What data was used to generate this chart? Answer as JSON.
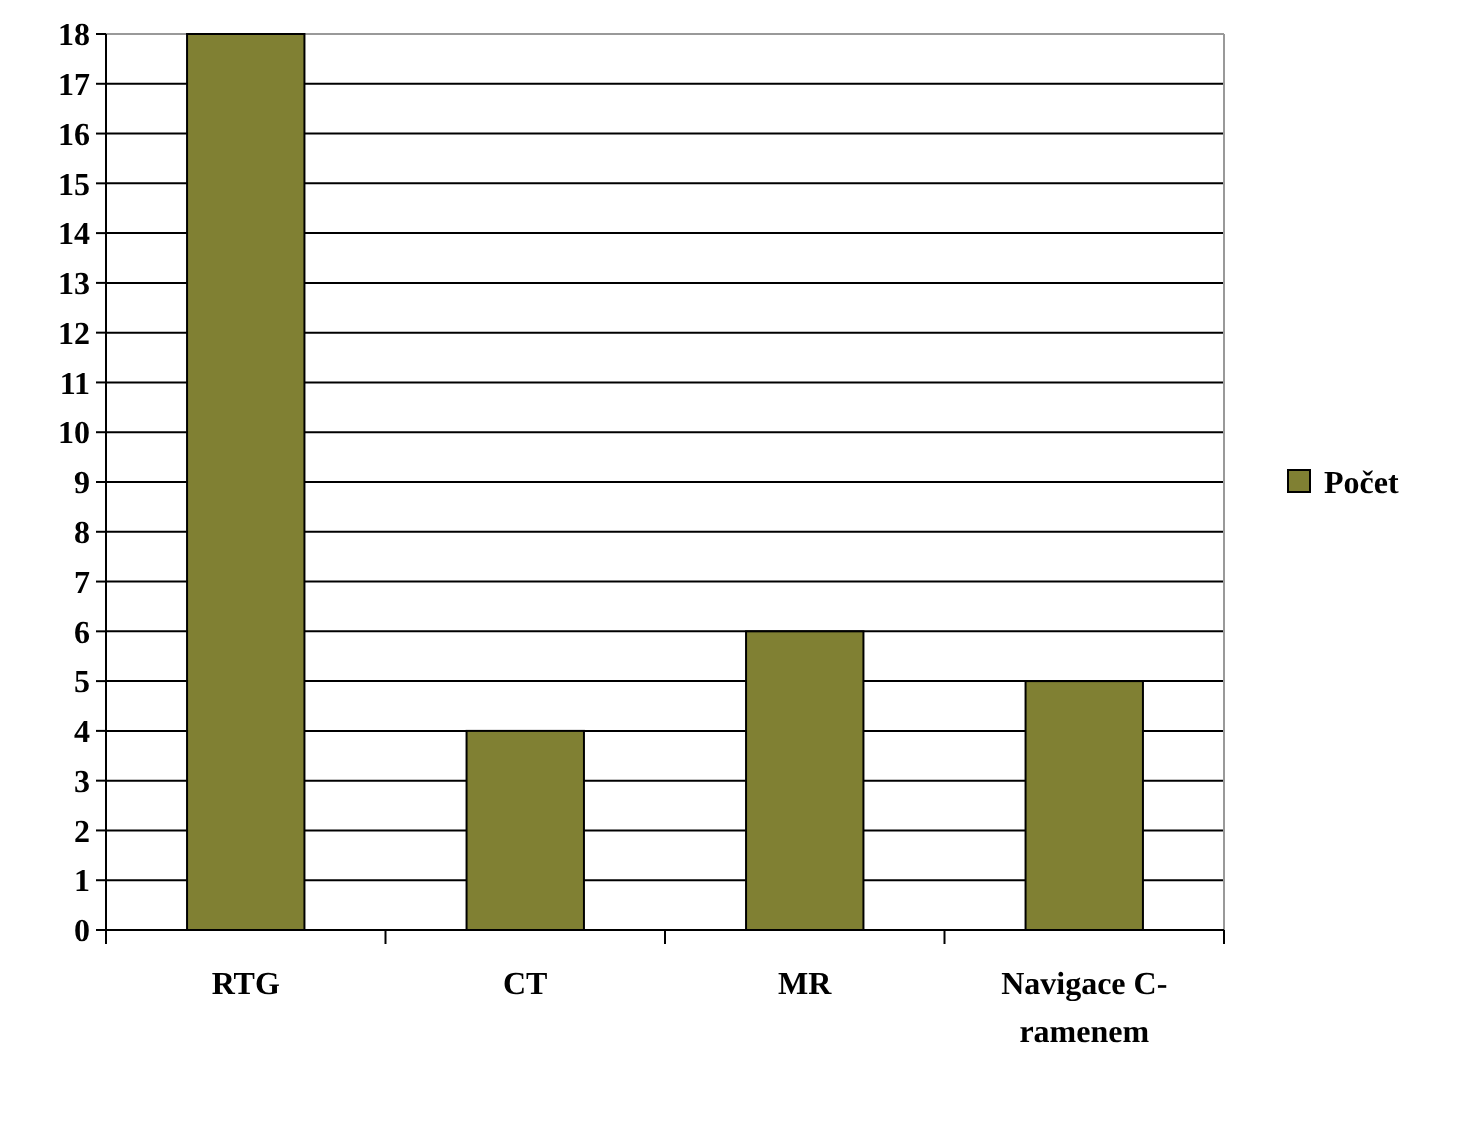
{
  "chart_data": {
    "type": "bar",
    "categories": [
      "RTG",
      "CT",
      "MR",
      "Navigace C-ramenem"
    ],
    "series": [
      {
        "name": "Počet",
        "color": "#808033",
        "values": [
          18,
          4,
          6,
          5
        ]
      }
    ],
    "ylim": [
      0,
      18
    ],
    "yticks": [
      0,
      1,
      2,
      3,
      4,
      5,
      6,
      7,
      8,
      9,
      10,
      11,
      12,
      13,
      14,
      15,
      16,
      17,
      18
    ],
    "grid": "y",
    "legend": "right"
  }
}
